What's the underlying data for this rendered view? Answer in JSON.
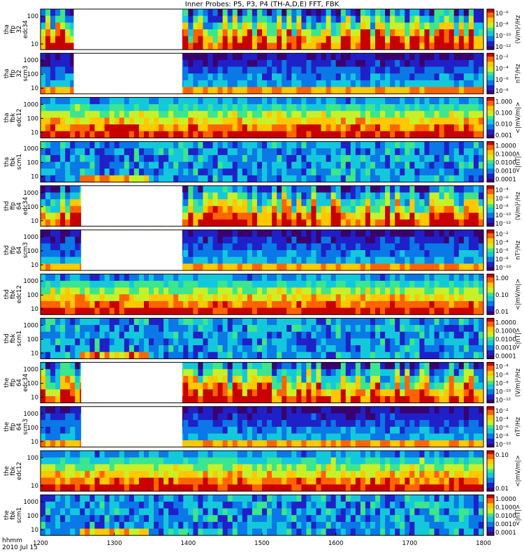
{
  "title": "Inner Probes: P5, P3, P4 (TH-A,D,E) FFT, FBK",
  "footer": {
    "line1": "hhmm",
    "line2": "2010 Jul 15"
  },
  "colors": {
    "colormap": [
      "#3b006f",
      "#2020c8",
      "#0a78e6",
      "#14c8dc",
      "#3ce68c",
      "#c8f028",
      "#ffc800",
      "#ff6400",
      "#c80000"
    ],
    "gap": "#ffffff",
    "frame": "#000000"
  },
  "chart_data": {
    "type": "heatmap",
    "x_axis": {
      "ticks": [
        "1200",
        "1300",
        "1400",
        "1500",
        "1600",
        "1700",
        "1800"
      ],
      "range": [
        1200,
        1800
      ]
    },
    "panels": [
      {
        "ylabel": [
          "tha",
          "ffp",
          "32",
          "edc34"
        ],
        "yticks": [
          "100",
          "10"
        ],
        "cbar_ticks": [
          "10⁻⁶",
          "10⁻⁸",
          "10⁻¹⁰",
          "10⁻¹²"
        ],
        "cbar_label": "(V/m)²/Hz",
        "gaps": [
          [
            1245,
            1392
          ]
        ],
        "kind": "ffp",
        "level": 0.45
      },
      {
        "ylabel": [
          "tha",
          "ffp",
          "32",
          "scm3"
        ],
        "yticks": [
          "1000",
          "100",
          "10"
        ],
        "cbar_ticks": [
          "10⁻²",
          "10⁻⁴",
          "10⁻⁶",
          "10⁻⁸"
        ],
        "cbar_label": "nT²/Hz",
        "gaps": [
          [
            1245,
            1392
          ]
        ],
        "kind": "scm",
        "level": 0.15
      },
      {
        "ylabel": [
          "tha",
          "fbk",
          "edc12"
        ],
        "yticks": [
          "1000",
          "100",
          "10"
        ],
        "cbar_ticks": [
          "1.000",
          "0.100",
          "0.010",
          "0.001"
        ],
        "cbar_label": "<|mV/m|>",
        "gaps": [],
        "kind": "fbk",
        "level": 0.7
      },
      {
        "ylabel": [
          "tha",
          "fbk",
          "scm1"
        ],
        "yticks": [
          "1000",
          "100",
          "10"
        ],
        "cbar_ticks": [
          "1.0000",
          "0.1000",
          "0.0100",
          "0.0010",
          "0.0001"
        ],
        "cbar_label": "<|nT|>",
        "gaps": [],
        "kind": "fbkscm",
        "level": 0.35
      },
      {
        "ylabel": [
          "thd",
          "ffp",
          "64",
          "edc34"
        ],
        "yticks": [
          "1000",
          "100",
          "10"
        ],
        "cbar_ticks": [
          "10⁻⁴",
          "10⁻⁶",
          "10⁻⁸",
          "10⁻¹⁰",
          "10⁻¹²"
        ],
        "cbar_label": "(V/m)²/Hz",
        "gaps": [
          [
            1255,
            1392
          ]
        ],
        "kind": "ffp",
        "level": 0.45
      },
      {
        "ylabel": [
          "thd",
          "ffp",
          "64",
          "scm3"
        ],
        "yticks": [
          "1000",
          "100",
          "10"
        ],
        "cbar_ticks": [
          "10⁻²",
          "10⁻⁴",
          "10⁻⁶",
          "10⁻⁸",
          "10⁻¹⁰"
        ],
        "cbar_label": "nT²/Hz",
        "gaps": [
          [
            1255,
            1392
          ]
        ],
        "kind": "scm",
        "level": 0.15
      },
      {
        "ylabel": [
          "thd",
          "fbk",
          "edc12"
        ],
        "yticks": [
          "1000",
          "100",
          "10"
        ],
        "cbar_ticks": [
          "1.00",
          "0.10",
          "0.01"
        ],
        "cbar_label": "<|mV/m|>",
        "gaps": [],
        "kind": "fbk",
        "level": 0.7
      },
      {
        "ylabel": [
          "thd",
          "fbk",
          "scm1"
        ],
        "yticks": [
          "1000",
          "100",
          "10"
        ],
        "cbar_ticks": [
          "1.0000",
          "0.1000",
          "0.0100",
          "0.0010",
          "0.0001"
        ],
        "cbar_label": "<|nT|>",
        "gaps": [],
        "kind": "fbkscm",
        "level": 0.35
      },
      {
        "ylabel": [
          "the",
          "ffp",
          "64",
          "edc34"
        ],
        "yticks": [
          "1000",
          "100",
          "10"
        ],
        "cbar_ticks": [
          "10⁻⁴",
          "10⁻⁶",
          "10⁻⁸",
          "10⁻¹⁰",
          "10⁻¹²"
        ],
        "cbar_label": "(V/m)²/Hz",
        "gaps": [
          [
            1255,
            1392
          ]
        ],
        "kind": "ffp",
        "level": 0.45
      },
      {
        "ylabel": [
          "the",
          "ffp",
          "64",
          "scm3"
        ],
        "yticks": [
          "1000",
          "100",
          "10"
        ],
        "cbar_ticks": [
          "10⁻²",
          "10⁻⁴",
          "10⁻⁶",
          "10⁻⁸",
          "10⁻¹⁰"
        ],
        "cbar_label": "nT²/Hz",
        "gaps": [
          [
            1255,
            1392
          ]
        ],
        "kind": "scm",
        "level": 0.15
      },
      {
        "ylabel": [
          "the",
          "fbk",
          "edc12"
        ],
        "yticks": [
          "100",
          "10"
        ],
        "cbar_ticks": [
          "0.10",
          "0.01"
        ],
        "cbar_label": "<|mV/m|>",
        "gaps": [],
        "kind": "fbk",
        "level": 0.7
      },
      {
        "ylabel": [
          "the",
          "fbk",
          "scm1"
        ],
        "yticks": [
          "1000",
          "100",
          "10"
        ],
        "cbar_ticks": [
          "1.0000",
          "0.1000",
          "0.0100",
          "0.0010",
          "0.0001"
        ],
        "cbar_label": "<|nT|>",
        "gaps": [],
        "kind": "fbkscm",
        "level": 0.35
      }
    ]
  }
}
